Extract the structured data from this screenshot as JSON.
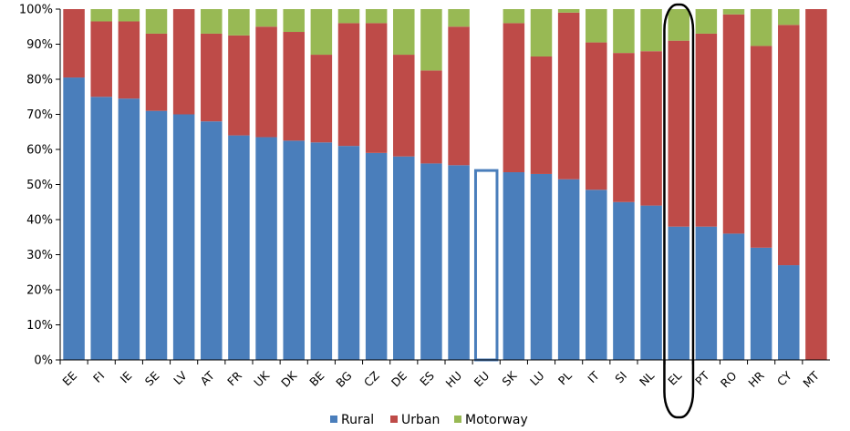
{
  "chart_data": {
    "type": "bar",
    "stacked": true,
    "title": "",
    "xlabel": "",
    "ylabel": "",
    "ylim": [
      0,
      100
    ],
    "y_ticks": [
      "0%",
      "10%",
      "20%",
      "30%",
      "40%",
      "50%",
      "60%",
      "70%",
      "80%",
      "90%",
      "100%"
    ],
    "categories": [
      "EE",
      "FI",
      "IE",
      "SE",
      "LV",
      "AT",
      "FR",
      "UK",
      "DK",
      "BE",
      "BG",
      "CZ",
      "DE",
      "ES",
      "HU",
      "EU",
      "SK",
      "LU",
      "PL",
      "IT",
      "SI",
      "NL",
      "EL",
      "PT",
      "RO",
      "HR",
      "CY",
      "MT"
    ],
    "series": [
      {
        "name": "Rural",
        "color": "#4a7ebb",
        "values": [
          80.5,
          75,
          74.5,
          71,
          70,
          68,
          64,
          63.5,
          62.5,
          62,
          61,
          59,
          58,
          56,
          55.5,
          54,
          53.5,
          53,
          51.5,
          48.5,
          45,
          44,
          38,
          38,
          36,
          32,
          27,
          0
        ]
      },
      {
        "name": "Urban",
        "color": "#be4b48",
        "values": [
          19.5,
          21.5,
          22,
          22,
          30,
          25,
          28.5,
          31.5,
          31,
          25,
          35,
          37,
          29,
          26.5,
          39.5,
          0,
          42.5,
          33.5,
          47.5,
          42,
          42.5,
          44,
          53,
          55,
          62.5,
          57.5,
          68.5,
          100
        ]
      },
      {
        "name": "Motorway",
        "color": "#98b954",
        "values": [
          0,
          3.5,
          3.5,
          7,
          0,
          7,
          7.5,
          5,
          6.5,
          13,
          4,
          4,
          13,
          17.5,
          5,
          0,
          4,
          13.5,
          1,
          9.5,
          12.5,
          12,
          9,
          7,
          1.5,
          10.5,
          4.5,
          0
        ]
      }
    ],
    "legend_position": "bottom",
    "grid": false,
    "highlighted_category": "EL",
    "outlined_category": "EU"
  }
}
